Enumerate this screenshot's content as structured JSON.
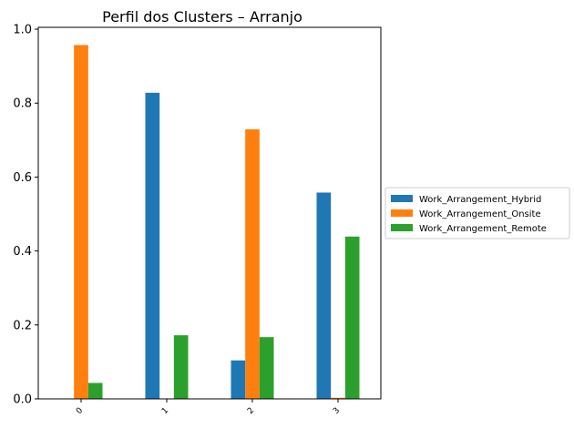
{
  "chart_data": {
    "type": "bar",
    "title": "Perfil dos Clusters – Arranjo",
    "xlabel": "",
    "ylabel": "",
    "categories": [
      "0",
      "1",
      "2",
      "3"
    ],
    "series": [
      {
        "name": "Work_Arrangement_Hybrid",
        "color": "#1f77b4",
        "values": [
          0.0,
          0.828,
          0.104,
          0.558
        ]
      },
      {
        "name": "Work_Arrangement_Onsite",
        "color": "#ff7f0e",
        "values": [
          0.957,
          0.0,
          0.729,
          0.003
        ]
      },
      {
        "name": "Work_Arrangement_Remote",
        "color": "#2ca02c",
        "values": [
          0.043,
          0.172,
          0.167,
          0.439
        ]
      }
    ],
    "ylim": [
      0,
      1.005
    ],
    "yticks": [
      "0.0",
      "0.2",
      "0.4",
      "0.6",
      "0.8",
      "1.0"
    ],
    "grid": false,
    "legend_position": "center-right outside"
  }
}
